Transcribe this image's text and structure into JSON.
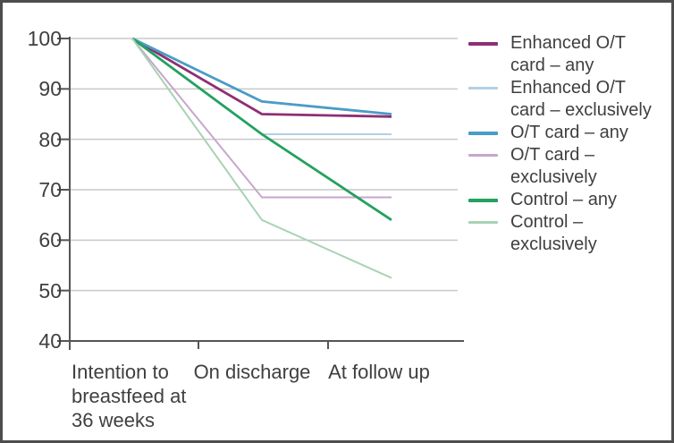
{
  "figure": {
    "background": "#ffffff",
    "border_color": "#4d4d4d"
  },
  "axis_style": {
    "axis_line_color": "#555555",
    "grid_color": "#c9c9c9",
    "text_color": "#3f3f3f"
  },
  "chart_data": {
    "type": "line",
    "categories": [
      "Intention to breastfeed at 36 weeks",
      "On discharge",
      "At follow up"
    ],
    "y_ticks": [
      100,
      90,
      80,
      70,
      60,
      50,
      40
    ],
    "ylim": [
      40,
      100
    ],
    "grid": "horizontal",
    "legend_position": "right",
    "series": [
      {
        "name": "Enhanced O/T card – any",
        "color": "#8e2f75",
        "weight": "thick",
        "values": [
          100,
          85,
          84.5
        ]
      },
      {
        "name": "Enhanced O/T card – exclusively",
        "color": "#b3d0e4",
        "weight": "thin",
        "values": [
          100,
          81,
          81
        ]
      },
      {
        "name": "O/T card – any",
        "color": "#4a9cc6",
        "weight": "thick",
        "values": [
          100,
          87.5,
          85
        ]
      },
      {
        "name": "O/T card – exclusively",
        "color": "#c7a6cc",
        "weight": "thin",
        "values": [
          100,
          68.5,
          68.5
        ]
      },
      {
        "name": "Control – any",
        "color": "#23a15f",
        "weight": "thick",
        "values": [
          100,
          81,
          64
        ]
      },
      {
        "name": "Control – exclusively",
        "color": "#a9d3b4",
        "weight": "thin",
        "values": [
          100,
          64,
          52.5
        ]
      }
    ]
  }
}
